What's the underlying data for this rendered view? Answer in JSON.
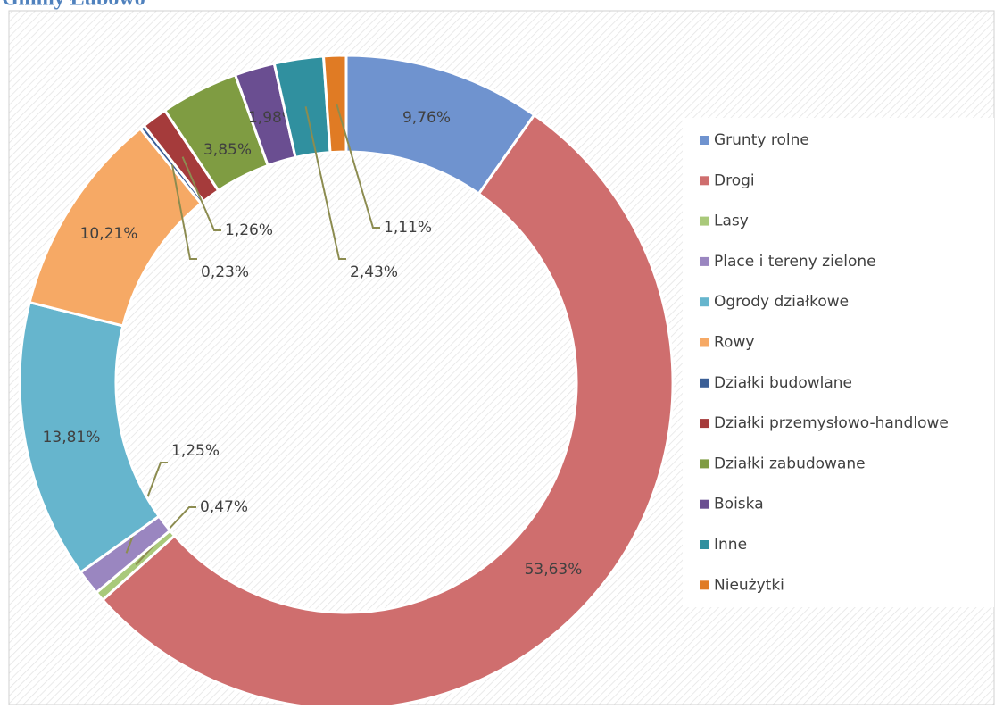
{
  "chart_data": {
    "type": "donut",
    "title": "Gminy Łubowo",
    "categories": [
      "Grunty rolne",
      "Drogi",
      "Lasy",
      "Place i tereny zielone",
      "Ogrody działkowe",
      "Rowy",
      "Działki budowlane",
      "Działki przemysłowo-handlowe",
      "Działki zabudowane",
      "Boiska",
      "Inne",
      "Nieużytki"
    ],
    "values": [
      9.76,
      53.63,
      0.47,
      1.25,
      13.81,
      10.21,
      0.23,
      1.26,
      3.85,
      1.98,
      2.43,
      1.11
    ],
    "value_labels": [
      "9,76%",
      "53,63%",
      "0,47%",
      "1,25%",
      "13,81%",
      "10,21%",
      "0,23%",
      "1,26%",
      "3,85%",
      "1,98%",
      "2,43%",
      "1,11%"
    ],
    "colors": [
      "#6f93cf",
      "#cf6e6e",
      "#a9c97a",
      "#9a86c0",
      "#66b5cd",
      "#f6a965",
      "#3b5f96",
      "#a53b3b",
      "#7f9c42",
      "#6a4e91",
      "#30909f",
      "#e07b24"
    ],
    "legend": "right"
  }
}
